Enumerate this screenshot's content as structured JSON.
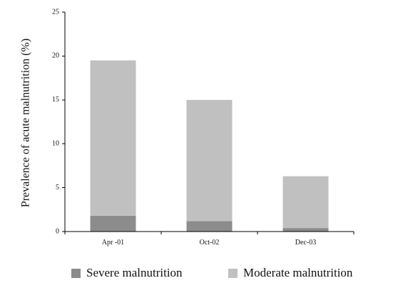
{
  "chart_data": {
    "type": "bar",
    "stacked": true,
    "categories": [
      "Apr -01",
      "Oct-02",
      "Dec-03"
    ],
    "series": [
      {
        "name": "Severe malnutrition",
        "values": [
          1.8,
          1.2,
          0.4
        ],
        "color": "#8c8c8c"
      },
      {
        "name": "Moderate malnutrition",
        "values": [
          17.7,
          13.8,
          5.9
        ],
        "color": "#c0c0c0"
      }
    ],
    "ylabel": "Prevalence of acute malnutrition (%)",
    "xlabel": "",
    "title": "",
    "ylim": [
      0,
      25
    ],
    "yticks": [
      0,
      5,
      10,
      15,
      20,
      25
    ],
    "grid": false,
    "legend_position": "bottom"
  }
}
